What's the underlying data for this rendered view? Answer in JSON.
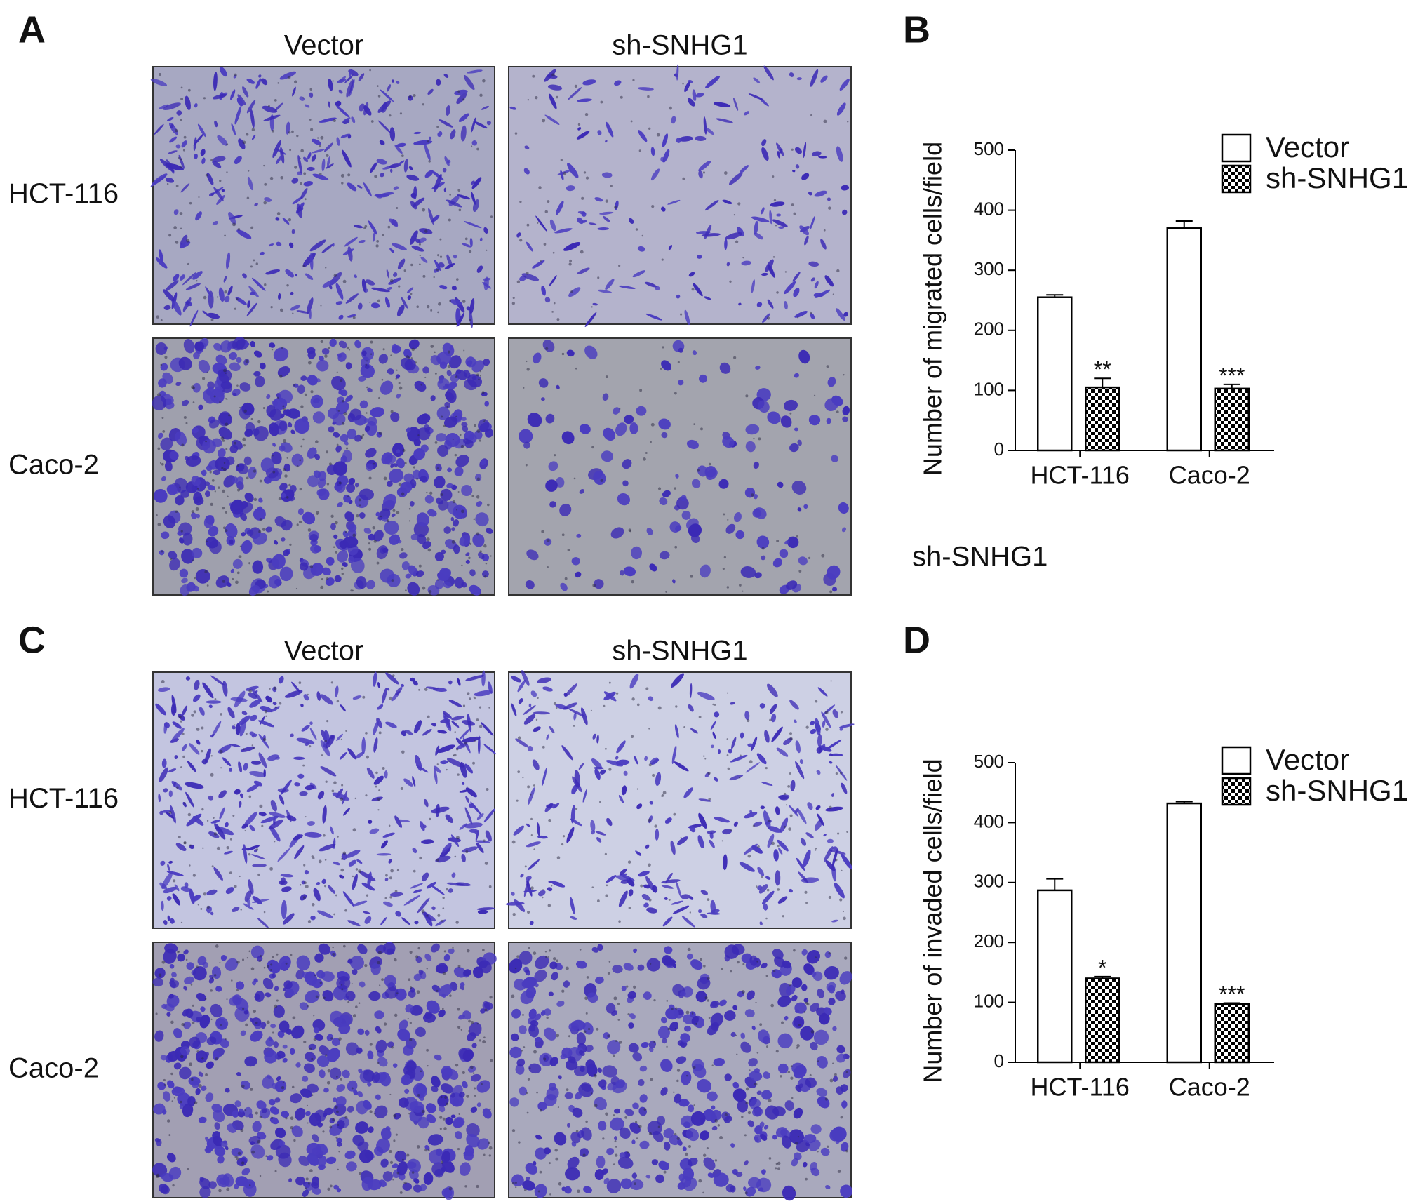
{
  "figure": {
    "panel_labels": [
      "A",
      "B",
      "C",
      "D"
    ],
    "micrographs": [
      {
        "columns": [
          "Vector",
          "sh-SNHG1"
        ],
        "rows": [
          "HCT-116",
          "Caco-2"
        ]
      },
      {
        "columns": [
          "Vector",
          "sh-SNHG1"
        ],
        "rows": [
          "HCT-116",
          "Caco-2"
        ]
      }
    ],
    "stray_label": "sh-SNHG1"
  },
  "chart_data": [
    {
      "type": "bar",
      "y_label": "Number of migrated cells/field",
      "categories": [
        "HCT-116",
        "Caco-2"
      ],
      "series": [
        {
          "name": "Vector",
          "color": "#ffffff",
          "values": [
            255,
            370
          ],
          "errors": [
            4,
            12
          ]
        },
        {
          "name": "sh-SNHG1",
          "color": "#000000",
          "pattern": "checker",
          "values": [
            105,
            103
          ],
          "errors": [
            15,
            7
          ],
          "annotations": [
            "**",
            "***"
          ]
        }
      ],
      "ylim": [
        0,
        500
      ],
      "yticks": [
        0,
        100,
        200,
        300,
        400,
        500
      ],
      "legend": "top-right"
    },
    {
      "type": "bar",
      "y_label": "Number of invaded cells/field",
      "categories": [
        "HCT-116",
        "Caco-2"
      ],
      "series": [
        {
          "name": "Vector",
          "color": "#ffffff",
          "values": [
            287,
            432
          ],
          "errors": [
            19,
            3
          ]
        },
        {
          "name": "sh-SNHG1",
          "color": "#000000",
          "pattern": "checker",
          "values": [
            140,
            97
          ],
          "errors": [
            3,
            2
          ],
          "annotations": [
            "*",
            "***"
          ]
        }
      ],
      "ylim": [
        0,
        500
      ],
      "yticks": [
        0,
        100,
        200,
        300,
        400,
        500
      ],
      "legend": "top-right"
    }
  ]
}
